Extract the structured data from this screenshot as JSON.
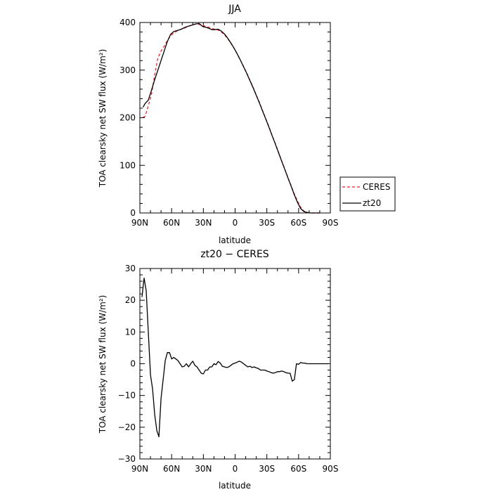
{
  "chart_data": [
    {
      "type": "line",
      "title": "JJA",
      "xlabel": "latitude",
      "ylabel": "TOA clearsky net SW flux (W/m²)",
      "xlim": [
        90,
        -90
      ],
      "ylim": [
        0,
        400
      ],
      "xticks": [
        90,
        60,
        30,
        0,
        -30,
        -60,
        -90
      ],
      "xtick_labels": [
        "90N",
        "60N",
        "30N",
        "0",
        "30S",
        "60S",
        "90S"
      ],
      "yticks": [
        0,
        100,
        200,
        300,
        400
      ],
      "ytick_labels": [
        "0",
        "100",
        "200",
        "300",
        "400"
      ],
      "legend": {
        "position": "right",
        "entries": [
          "CERES",
          "zt20"
        ]
      },
      "series": [
        {
          "name": "CERES",
          "color": "#e8232a",
          "dash": "dashed",
          "x": [
            87,
            85,
            82,
            79,
            76,
            73,
            70,
            67,
            64,
            61,
            58,
            55,
            52,
            49,
            46,
            43,
            40,
            37,
            34,
            31,
            28,
            25,
            22,
            19,
            16,
            13,
            10,
            7,
            4,
            1,
            -2,
            -5,
            -8,
            -11,
            -14,
            -17,
            -20,
            -23,
            -26,
            -29,
            -32,
            -35,
            -38,
            -41,
            -44,
            -47,
            -50,
            -53,
            -56,
            -59,
            -62,
            -65,
            -68,
            -71,
            -74,
            -77,
            -80
          ],
          "values": [
            201,
            203,
            225,
            250,
            290,
            325,
            340,
            350,
            362,
            372,
            378,
            382,
            385,
            387,
            390,
            393,
            395,
            397,
            396,
            394,
            392,
            390,
            387,
            386,
            384,
            380,
            374,
            366,
            356,
            346,
            334,
            321,
            308,
            294,
            279,
            264,
            248,
            232,
            215,
            198,
            181,
            163,
            146,
            128,
            110,
            92,
            74,
            57,
            40,
            25,
            12,
            4,
            1,
            0,
            0,
            0,
            0
          ]
        },
        {
          "name": "zt20",
          "color": "#000000",
          "dash": "solid",
          "x": [
            87,
            85,
            82,
            79,
            76,
            73,
            70,
            67,
            64,
            61,
            58,
            55,
            52,
            49,
            46,
            43,
            40,
            37,
            34,
            31,
            28,
            25,
            22,
            19,
            16,
            13,
            10,
            7,
            4,
            1,
            -2,
            -5,
            -8,
            -11,
            -14,
            -17,
            -20,
            -23,
            -26,
            -29,
            -32,
            -35,
            -38,
            -41,
            -44,
            -47,
            -50,
            -53,
            -56,
            -59,
            -62,
            -65,
            -68,
            -71,
            -74,
            -77,
            -80
          ],
          "values": [
            222,
            230,
            237,
            258,
            280,
            300,
            320,
            340,
            360,
            375,
            381,
            383,
            385,
            388,
            391,
            393,
            395,
            397,
            398,
            392,
            390,
            388,
            385,
            385,
            386,
            382,
            376,
            367,
            357,
            346,
            334,
            321,
            307,
            293,
            278,
            263,
            247,
            231,
            214,
            197,
            180,
            162,
            145,
            127,
            109,
            91,
            73,
            56,
            38,
            22,
            9,
            3,
            1,
            0,
            0,
            0,
            0
          ]
        }
      ]
    },
    {
      "type": "line",
      "title": "zt20 − CERES",
      "xlabel": "latitude",
      "ylabel": "TOA clearsky net SW flux (W/m²)",
      "xlim": [
        90,
        -90
      ],
      "ylim": [
        -30,
        30
      ],
      "xticks": [
        90,
        60,
        30,
        0,
        -30,
        -60,
        -90
      ],
      "xtick_labels": [
        "90N",
        "60N",
        "30N",
        "0",
        "30S",
        "60S",
        "90S"
      ],
      "yticks": [
        -30,
        -20,
        -10,
        0,
        10,
        20,
        30
      ],
      "ytick_labels": [
        "−30",
        "−20",
        "−10",
        "0",
        "10",
        "20",
        "30"
      ],
      "series": [
        {
          "color": "#000000",
          "dash": "solid",
          "x": [
            88,
            86,
            84,
            82,
            80,
            78,
            76,
            74,
            72,
            70,
            68,
            66,
            64,
            62,
            60,
            58,
            56,
            54,
            52,
            50,
            48,
            46,
            44,
            42,
            40,
            38,
            36,
            34,
            32,
            30,
            28,
            26,
            24,
            22,
            20,
            18,
            16,
            14,
            12,
            10,
            8,
            6,
            4,
            2,
            0,
            -2,
            -4,
            -6,
            -8,
            -10,
            -12,
            -14,
            -16,
            -18,
            -20,
            -22,
            -24,
            -26,
            -28,
            -30,
            -32,
            -34,
            -36,
            -38,
            -40,
            -42,
            -44,
            -46,
            -48,
            -50,
            -52,
            -54,
            -56,
            -58,
            -60,
            -62,
            -64,
            -66,
            -68,
            -70,
            -72,
            -74,
            -76,
            -78,
            -80,
            -82,
            -84,
            -86,
            -88
          ],
          "values": [
            21,
            27,
            23,
            10,
            -3.5,
            -8,
            -16,
            -21,
            -23,
            -11,
            -5,
            1,
            3.5,
            3.5,
            1.5,
            2,
            1.5,
            1,
            0,
            -1,
            -0.8,
            0,
            -1,
            0,
            0.8,
            -0.5,
            -1,
            -2,
            -3,
            -3.2,
            -2,
            -2,
            -1,
            -1,
            0,
            -0.3,
            0.7,
            0.2,
            -0.8,
            -1,
            -1.2,
            -1,
            -0.5,
            0,
            0.2,
            0.5,
            0.8,
            0.5,
            0,
            -0.5,
            -1,
            -0.8,
            -1.2,
            -1,
            -1.3,
            -1.5,
            -2,
            -2,
            -2,
            -2.3,
            -2.5,
            -2.8,
            -3,
            -2.8,
            -2.5,
            -2.5,
            -2.3,
            -2.5,
            -2.8,
            -3,
            -3,
            -5.5,
            -5,
            0,
            -0.2,
            0.4,
            0.2,
            0.2,
            0,
            0,
            0,
            0,
            0,
            0,
            0,
            0,
            0,
            0,
            0
          ]
        }
      ]
    }
  ]
}
